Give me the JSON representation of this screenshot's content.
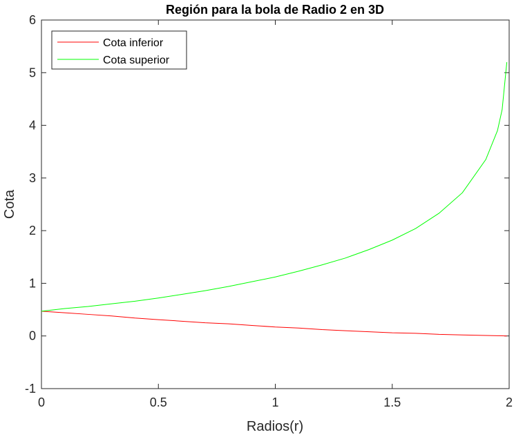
{
  "chart_data": {
    "type": "line",
    "title": "Región para la bola de Radio 2 en 3D",
    "xlabel": "Radios(r)",
    "ylabel": "Cota",
    "x": [
      0,
      0.1,
      0.2,
      0.3,
      0.4,
      0.5,
      0.6,
      0.7,
      0.8,
      0.9,
      1.0,
      1.1,
      1.2,
      1.3,
      1.4,
      1.5,
      1.6,
      1.7,
      1.8,
      1.9,
      1.95,
      1.97,
      1.99
    ],
    "series": [
      {
        "name": "Cota inferior",
        "color": "#ff0000",
        "values": [
          0.47,
          0.44,
          0.41,
          0.38,
          0.34,
          0.31,
          0.28,
          0.25,
          0.23,
          0.2,
          0.17,
          0.15,
          0.12,
          0.1,
          0.08,
          0.06,
          0.05,
          0.03,
          0.02,
          0.01,
          0.005,
          0.003,
          0
        ]
      },
      {
        "name": "Cota superior",
        "color": "#00ff00",
        "values": [
          0.47,
          0.52,
          0.56,
          0.61,
          0.66,
          0.72,
          0.79,
          0.86,
          0.94,
          1.03,
          1.12,
          1.23,
          1.35,
          1.48,
          1.64,
          1.82,
          2.04,
          2.33,
          2.72,
          3.35,
          3.9,
          4.3,
          5.2
        ]
      }
    ],
    "xlim": [
      0,
      2
    ],
    "xticks": [
      0,
      0.5,
      1,
      1.5,
      2
    ],
    "ylim": [
      -1,
      6
    ],
    "yticks": [
      -1,
      0,
      1,
      2,
      3,
      4,
      5,
      6
    ],
    "grid": false,
    "legend": "upper-left"
  }
}
